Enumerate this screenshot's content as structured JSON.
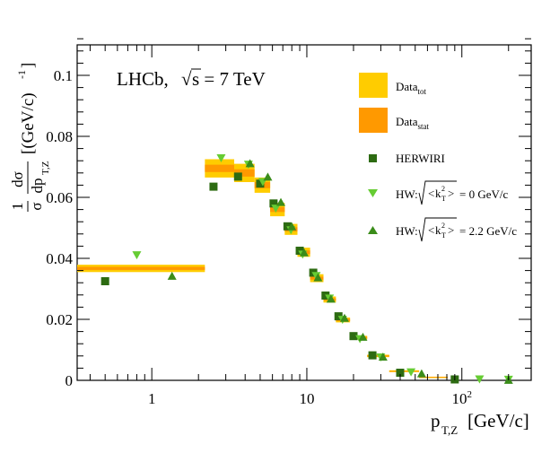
{
  "chart_data": {
    "type": "scatter",
    "annotation": {
      "experiment": "LHCb,",
      "energy_prefix": "s = 7 TeV",
      "sqrt_symbol": "√"
    },
    "xlabel": {
      "main": "p",
      "sub": "T,Z",
      "unit": "[GeV/c]"
    },
    "ylabel": {
      "num": "1",
      "den": "σ",
      "dnum": "dσ",
      "dden": "dp",
      "dden_sub": "T,Z",
      "unit": "[(GeV/c)",
      "unit_sup": "-1",
      "unit_close": "]"
    },
    "x_scale": "log",
    "xlim": [
      0.33,
      280
    ],
    "ylim": [
      0,
      0.11
    ],
    "x_ticks": [
      {
        "value": 1,
        "label": "1"
      },
      {
        "value": 10,
        "label": "10"
      },
      {
        "value": 100,
        "label": "10",
        "sup": "2"
      }
    ],
    "y_ticks": [
      {
        "value": 0,
        "label": "0"
      },
      {
        "value": 0.02,
        "label": "0.02"
      },
      {
        "value": 0.04,
        "label": "0.04"
      },
      {
        "value": 0.06,
        "label": "0.06"
      },
      {
        "value": 0.08,
        "label": "0.08"
      },
      {
        "value": 0.1,
        "label": "0.1"
      }
    ],
    "data_bands": [
      {
        "x0": 0.33,
        "x1": 2.2,
        "y": 0.0367,
        "err_tot": 0.0012,
        "err_stat": 0.0005
      },
      {
        "x0": 2.2,
        "x1": 3.4,
        "y": 0.0695,
        "err_tot": 0.003,
        "err_stat": 0.0012
      },
      {
        "x0": 3.4,
        "x1": 4.6,
        "y": 0.068,
        "err_tot": 0.003,
        "err_stat": 0.0012
      },
      {
        "x0": 4.6,
        "x1": 5.8,
        "y": 0.064,
        "err_tot": 0.0025,
        "err_stat": 0.001
      },
      {
        "x0": 5.8,
        "x1": 7.2,
        "y": 0.056,
        "err_tot": 0.0022,
        "err_stat": 0.0008
      },
      {
        "x0": 7.2,
        "x1": 8.7,
        "y": 0.0495,
        "err_tot": 0.0018,
        "err_stat": 0.0007
      },
      {
        "x0": 8.7,
        "x1": 10.5,
        "y": 0.042,
        "err_tot": 0.0015,
        "err_stat": 0.0006
      },
      {
        "x0": 10.5,
        "x1": 12.8,
        "y": 0.0335,
        "err_tot": 0.0013,
        "err_stat": 0.0005
      },
      {
        "x0": 12.8,
        "x1": 15.4,
        "y": 0.0265,
        "err_tot": 0.001,
        "err_stat": 0.0004
      },
      {
        "x0": 15.4,
        "x1": 19.0,
        "y": 0.0198,
        "err_tot": 0.0008,
        "err_stat": 0.0004
      },
      {
        "x0": 19.0,
        "x1": 24.5,
        "y": 0.014,
        "err_tot": 0.0006,
        "err_stat": 0.0003
      },
      {
        "x0": 24.5,
        "x1": 34.0,
        "y": 0.008,
        "err_tot": 0.0004,
        "err_stat": 0.0002
      },
      {
        "x0": 34.0,
        "x1": 53.0,
        "y": 0.003,
        "err_tot": 0.0003,
        "err_stat": 0.0001
      },
      {
        "x0": 53.0,
        "x1": 81.0,
        "y": 0.001,
        "err_tot": 0.0002,
        "err_stat": 0.0001
      }
    ],
    "series": [
      {
        "name": "HERWIRI",
        "marker": "square",
        "color": "#2d6b12",
        "points": [
          [
            0.5,
            0.0325
          ],
          [
            2.5,
            0.0635
          ],
          [
            3.6,
            0.0668
          ],
          [
            5.0,
            0.0645
          ],
          [
            6.1,
            0.058
          ],
          [
            7.5,
            0.0505
          ],
          [
            9.0,
            0.0425
          ],
          [
            11.0,
            0.0353
          ],
          [
            13.2,
            0.0278
          ],
          [
            16.0,
            0.021
          ],
          [
            20.0,
            0.0145
          ],
          [
            26.5,
            0.0082
          ],
          [
            40.0,
            0.0025
          ],
          [
            90.0,
            0.0003
          ]
        ]
      },
      {
        "name": "HW: 0 GeV/c",
        "marker": "triangle-down",
        "color": "#66cc33",
        "points": [
          [
            0.8,
            0.041
          ],
          [
            2.8,
            0.0728
          ],
          [
            4.2,
            0.0707
          ],
          [
            5.2,
            0.065
          ],
          [
            6.3,
            0.0563
          ],
          [
            7.9,
            0.0492
          ],
          [
            9.4,
            0.0412
          ],
          [
            11.5,
            0.0342
          ],
          [
            14.0,
            0.0268
          ],
          [
            17.0,
            0.0198
          ],
          [
            22.0,
            0.0135
          ],
          [
            30.0,
            0.0075
          ],
          [
            47.0,
            0.0026
          ],
          [
            130.0,
            0.0003
          ],
          [
            200.0,
            0.0002
          ]
        ]
      },
      {
        "name": "HW: 2.2 GeV/c",
        "marker": "triangle-up",
        "color": "#3a8c1a",
        "points": [
          [
            1.35,
            0.0343
          ],
          [
            4.3,
            0.0712
          ],
          [
            5.6,
            0.0668
          ],
          [
            6.8,
            0.0585
          ],
          [
            8.0,
            0.0505
          ],
          [
            9.6,
            0.042
          ],
          [
            11.8,
            0.0338
          ],
          [
            14.3,
            0.0268
          ],
          [
            17.5,
            0.0205
          ],
          [
            23.0,
            0.0143
          ],
          [
            31.0,
            0.0078
          ],
          [
            55.0,
            0.0023
          ],
          [
            200.0,
            0.0002
          ]
        ]
      }
    ],
    "legend": {
      "position": "top-right",
      "entries": [
        {
          "type": "band",
          "color": "#ffcc00",
          "main": "Data",
          "sub": "tot"
        },
        {
          "type": "band",
          "color": "#ff9900",
          "main": "Data",
          "sub": "stat"
        },
        {
          "type": "square",
          "color": "#2d6b12",
          "text": "HERWIRI"
        },
        {
          "type": "triangle-down",
          "color": "#66cc33",
          "prefix": "HW:",
          "k": "k",
          "k_sub": "T",
          "k_sup": "2",
          "value": "= 0 GeV/c"
        },
        {
          "type": "triangle-up",
          "color": "#3a8c1a",
          "prefix": "HW:",
          "k": "k",
          "k_sub": "T",
          "k_sup": "2",
          "value": "= 2.2 GeV/c"
        }
      ]
    },
    "colors": {
      "data_tot": "#ffcc00",
      "data_stat": "#ff9900",
      "frame": "#000000"
    }
  }
}
